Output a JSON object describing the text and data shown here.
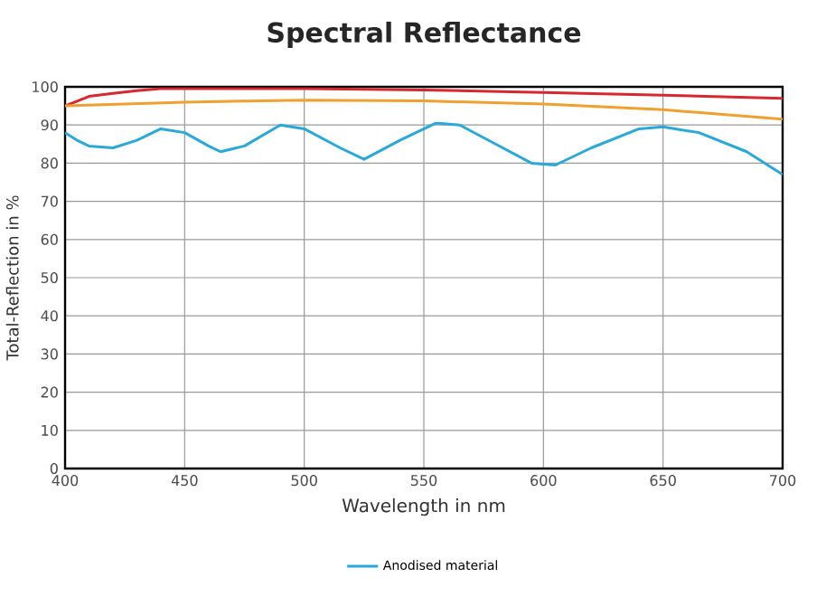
{
  "chart_data": {
    "type": "line",
    "title": "Spectral Reflectance",
    "xlabel": "Wavelength in nm",
    "ylabel": "Total-Reflection in %",
    "xlim": [
      400,
      700
    ],
    "xticks": [
      400,
      450,
      500,
      550,
      600,
      650,
      700
    ],
    "ylim": [
      0,
      100
    ],
    "yticks": [
      0,
      10,
      20,
      30,
      40,
      50,
      60,
      70,
      80,
      90,
      100
    ],
    "grid": true,
    "legend": "bottom",
    "marker": "none",
    "line_style": "solid",
    "series": [
      {
        "color": "#d7282f",
        "x": [
          400,
          410,
          420,
          430,
          440,
          500,
          550,
          600,
          650,
          700
        ],
        "values": [
          95,
          97.5,
          98.3,
          99,
          99.5,
          99.5,
          99.2,
          98.5,
          97.8,
          97
        ]
      },
      {
        "color": "#f0a030",
        "x": [
          400,
          450,
          500,
          550,
          600,
          650,
          700
        ],
        "values": [
          95,
          96,
          96.5,
          96.3,
          95.5,
          94,
          91.5
        ]
      },
      {
        "name": "Anodised material",
        "color": "#29a9d9",
        "x": [
          400,
          405,
          410,
          420,
          430,
          440,
          450,
          460,
          465,
          475,
          490,
          500,
          515,
          525,
          540,
          555,
          565,
          580,
          595,
          605,
          620,
          640,
          650,
          665,
          685,
          700
        ],
        "values": [
          88,
          86,
          84.5,
          84,
          86,
          89,
          88,
          84.5,
          83,
          84.5,
          90,
          89,
          84,
          81,
          86,
          90.5,
          90,
          85,
          80,
          79.5,
          84,
          89,
          89.5,
          88,
          83,
          77
        ]
      }
    ]
  }
}
